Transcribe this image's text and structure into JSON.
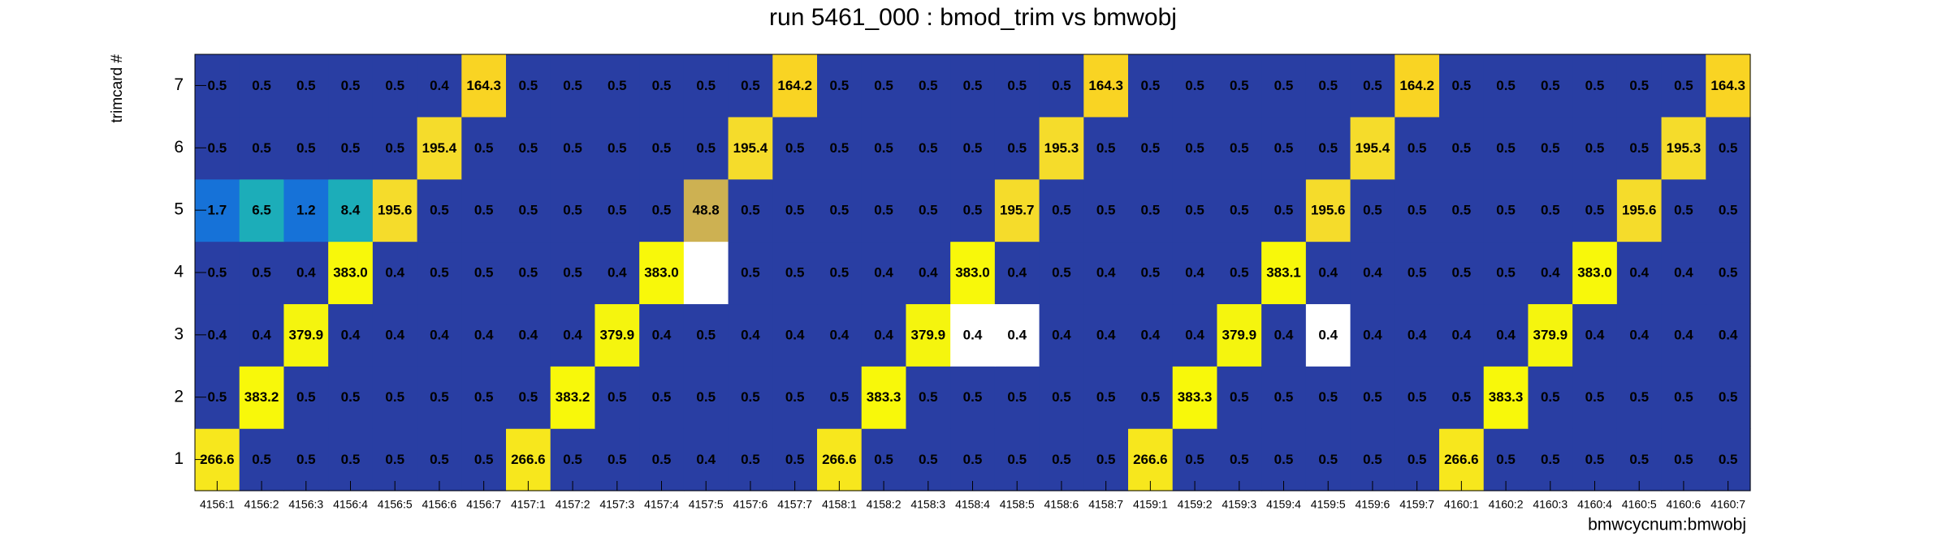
{
  "chart_data": {
    "type": "heatmap",
    "title": "run 5461_000 : bmod_trim vs bmwobj",
    "x_label": "bmwcycnum:bmwobj",
    "y_label": "trimcard #",
    "categories": [
      "4156:1",
      "4156:2",
      "4156:3",
      "4156:4",
      "4156:5",
      "4156:6",
      "4156:7",
      "4157:1",
      "4157:2",
      "4157:3",
      "4157:4",
      "4157:5",
      "4157:6",
      "4157:7",
      "4158:1",
      "4158:2",
      "4158:3",
      "4158:4",
      "4158:5",
      "4158:6",
      "4158:7",
      "4159:1",
      "4159:2",
      "4159:3",
      "4159:4",
      "4159:5",
      "4159:6",
      "4159:7",
      "4160:1",
      "4160:2",
      "4160:3",
      "4160:4",
      "4160:5",
      "4160:6",
      "4160:7"
    ],
    "rows": [
      {
        "name": "1",
        "values": [
          266.6,
          0.5,
          0.5,
          0.5,
          0.5,
          0.5,
          0.5,
          266.6,
          0.5,
          0.5,
          0.5,
          0.4,
          0.5,
          0.5,
          266.6,
          0.5,
          0.5,
          0.5,
          0.5,
          0.5,
          0.5,
          266.6,
          0.5,
          0.5,
          0.5,
          0.5,
          0.5,
          0.5,
          266.6,
          0.5,
          0.5,
          0.5,
          0.5,
          0.5,
          0.5
        ],
        "colors": [
          "#f7e71d",
          "#293ea3",
          "#293ea3",
          "#293ea3",
          "#293ea3",
          "#293ea3",
          "#293ea3",
          "#f7e71d",
          "#293ea3",
          "#293ea3",
          "#293ea3",
          "#293ea3",
          "#293ea3",
          "#293ea3",
          "#f7e71d",
          "#293ea3",
          "#293ea3",
          "#293ea3",
          "#293ea3",
          "#293ea3",
          "#293ea3",
          "#f7e71d",
          "#293ea3",
          "#293ea3",
          "#293ea3",
          "#293ea3",
          "#293ea3",
          "#293ea3",
          "#f7e71d",
          "#293ea3",
          "#293ea3",
          "#293ea3",
          "#293ea3",
          "#293ea3",
          "#293ea3"
        ]
      },
      {
        "name": "2",
        "values": [
          0.5,
          383.2,
          0.5,
          0.5,
          0.5,
          0.5,
          0.5,
          0.5,
          383.2,
          0.5,
          0.5,
          0.5,
          0.5,
          0.5,
          0.5,
          383.3,
          0.5,
          0.5,
          0.5,
          0.5,
          0.5,
          0.5,
          383.3,
          0.5,
          0.5,
          0.5,
          0.5,
          0.5,
          0.5,
          383.3,
          0.5,
          0.5,
          0.5,
          0.5,
          0.5
        ],
        "colors": [
          "#293ea3",
          "#f8f80a",
          "#293ea3",
          "#293ea3",
          "#293ea3",
          "#293ea3",
          "#293ea3",
          "#293ea3",
          "#f8f80a",
          "#293ea3",
          "#293ea3",
          "#293ea3",
          "#293ea3",
          "#293ea3",
          "#293ea3",
          "#f8f80a",
          "#293ea3",
          "#293ea3",
          "#293ea3",
          "#293ea3",
          "#293ea3",
          "#293ea3",
          "#f8f80a",
          "#293ea3",
          "#293ea3",
          "#293ea3",
          "#293ea3",
          "#293ea3",
          "#293ea3",
          "#f8f80a",
          "#293ea3",
          "#293ea3",
          "#293ea3",
          "#293ea3",
          "#293ea3"
        ]
      },
      {
        "name": "3",
        "values": [
          0.4,
          0.4,
          379.9,
          0.4,
          0.4,
          0.4,
          0.4,
          0.4,
          0.4,
          379.9,
          0.4,
          0.5,
          0.4,
          0.4,
          0.4,
          0.4,
          379.9,
          0.4,
          0.4,
          0.4,
          0.4,
          0.4,
          0.4,
          379.9,
          0.4,
          0.4,
          0.4,
          0.4,
          0.4,
          0.4,
          379.9,
          0.4,
          0.4,
          0.4,
          0.4
        ],
        "colors": [
          "#293ea3",
          "#293ea3",
          "#f5f50e",
          "#293ea3",
          "#293ea3",
          "#293ea3",
          "#293ea3",
          "#293ea3",
          "#293ea3",
          "#f5f50e",
          "#293ea3",
          "#293ea3",
          "#293ea3",
          "#293ea3",
          "#293ea3",
          "#293ea3",
          "#f5f50e",
          "#ffffff",
          "#ffffff",
          "#293ea3",
          "#293ea3",
          "#293ea3",
          "#293ea3",
          "#f5f50e",
          "#293ea3",
          "#ffffff",
          "#293ea3",
          "#293ea3",
          "#293ea3",
          "#293ea3",
          "#f5f50e",
          "#293ea3",
          "#293ea3",
          "#293ea3",
          "#293ea3"
        ]
      },
      {
        "name": "4",
        "values": [
          0.5,
          0.5,
          0.4,
          383,
          0.4,
          0.5,
          0.5,
          0.5,
          0.5,
          0.4,
          383,
          null,
          0.5,
          0.5,
          0.5,
          0.4,
          0.4,
          383,
          0.4,
          0.5,
          0.4,
          0.5,
          0.4,
          0.5,
          383.1,
          0.4,
          0.4,
          0.5,
          0.5,
          0.5,
          0.4,
          383,
          0.4,
          0.4,
          0.5
        ],
        "value_labels": [
          "0.5",
          "0.5",
          "0.4",
          "383.0",
          "0.4",
          "0.5",
          "0.5",
          "0.5",
          "0.5",
          "0.4",
          "383.0",
          null,
          "0.5",
          "0.5",
          "0.5",
          "0.4",
          "0.4",
          "383.0",
          "0.4",
          "0.5",
          "0.4",
          "0.5",
          "0.4",
          "0.5",
          "383.1",
          "0.4",
          "0.4",
          "0.5",
          "0.5",
          "0.5",
          "0.4",
          "383.0",
          "0.4",
          "0.4",
          "0.5"
        ],
        "colors": [
          "#293ea3",
          "#293ea3",
          "#293ea3",
          "#f8f80a",
          "#293ea3",
          "#293ea3",
          "#293ea3",
          "#293ea3",
          "#293ea3",
          "#293ea3",
          "#f8f80a",
          "#ffffff",
          "#293ea3",
          "#293ea3",
          "#293ea3",
          "#293ea3",
          "#293ea3",
          "#f8f80a",
          "#293ea3",
          "#293ea3",
          "#293ea3",
          "#293ea3",
          "#293ea3",
          "#293ea3",
          "#f8f80a",
          "#293ea3",
          "#293ea3",
          "#293ea3",
          "#293ea3",
          "#293ea3",
          "#293ea3",
          "#f8f80a",
          "#293ea3",
          "#293ea3",
          "#293ea3"
        ]
      },
      {
        "name": "5",
        "values": [
          1.7,
          6.5,
          1.2,
          8.4,
          195.6,
          0.5,
          0.5,
          0.5,
          0.5,
          0.5,
          0.5,
          48.8,
          0.5,
          0.5,
          0.5,
          0.5,
          0.5,
          0.5,
          195.7,
          0.5,
          0.5,
          0.5,
          0.5,
          0.5,
          0.5,
          195.6,
          0.5,
          0.5,
          0.5,
          0.5,
          0.5,
          0.5,
          195.6,
          0.5,
          0.5
        ],
        "colors": [
          "#1672d8",
          "#1cadb9",
          "#1672d8",
          "#1cadb9",
          "#f5dc2b",
          "#293ea3",
          "#293ea3",
          "#293ea3",
          "#293ea3",
          "#293ea3",
          "#293ea3",
          "#cdb152",
          "#293ea3",
          "#293ea3",
          "#293ea3",
          "#293ea3",
          "#293ea3",
          "#293ea3",
          "#f5dc2b",
          "#293ea3",
          "#293ea3",
          "#293ea3",
          "#293ea3",
          "#293ea3",
          "#293ea3",
          "#f5dc2b",
          "#293ea3",
          "#293ea3",
          "#293ea3",
          "#293ea3",
          "#293ea3",
          "#293ea3",
          "#f5dc2b",
          "#293ea3",
          "#293ea3"
        ]
      },
      {
        "name": "6",
        "values": [
          0.5,
          0.5,
          0.5,
          0.5,
          0.5,
          195.4,
          0.5,
          0.5,
          0.5,
          0.5,
          0.5,
          0.5,
          195.4,
          0.5,
          0.5,
          0.5,
          0.5,
          0.5,
          0.5,
          195.3,
          0.5,
          0.5,
          0.5,
          0.5,
          0.5,
          0.5,
          195.4,
          0.5,
          0.5,
          0.5,
          0.5,
          0.5,
          0.5,
          195.3,
          0.5
        ],
        "colors": [
          "#293ea3",
          "#293ea3",
          "#293ea3",
          "#293ea3",
          "#293ea3",
          "#f5dc2b",
          "#293ea3",
          "#293ea3",
          "#293ea3",
          "#293ea3",
          "#293ea3",
          "#293ea3",
          "#f5dc2b",
          "#293ea3",
          "#293ea3",
          "#293ea3",
          "#293ea3",
          "#293ea3",
          "#293ea3",
          "#f5dc2b",
          "#293ea3",
          "#293ea3",
          "#293ea3",
          "#293ea3",
          "#293ea3",
          "#293ea3",
          "#f5dc2b",
          "#293ea3",
          "#293ea3",
          "#293ea3",
          "#293ea3",
          "#293ea3",
          "#293ea3",
          "#f5dc2b",
          "#293ea3"
        ]
      },
      {
        "name": "7",
        "values": [
          0.5,
          0.5,
          0.5,
          0.5,
          0.5,
          0.4,
          164.3,
          0.5,
          0.5,
          0.5,
          0.5,
          0.5,
          0.5,
          164.2,
          0.5,
          0.5,
          0.5,
          0.5,
          0.5,
          0.5,
          164.3,
          0.5,
          0.5,
          0.5,
          0.5,
          0.5,
          0.5,
          164.2,
          0.5,
          0.5,
          0.5,
          0.5,
          0.5,
          0.5,
          164.3
        ],
        "colors": [
          "#293ea3",
          "#293ea3",
          "#293ea3",
          "#293ea3",
          "#293ea3",
          "#293ea3",
          "#f9d423",
          "#293ea3",
          "#293ea3",
          "#293ea3",
          "#293ea3",
          "#293ea3",
          "#293ea3",
          "#f9d423",
          "#293ea3",
          "#293ea3",
          "#293ea3",
          "#293ea3",
          "#293ea3",
          "#293ea3",
          "#f9d423",
          "#293ea3",
          "#293ea3",
          "#293ea3",
          "#293ea3",
          "#293ea3",
          "#293ea3",
          "#f9d423",
          "#293ea3",
          "#293ea3",
          "#293ea3",
          "#293ea3",
          "#293ea3",
          "#293ea3",
          "#f9d423"
        ]
      }
    ]
  }
}
